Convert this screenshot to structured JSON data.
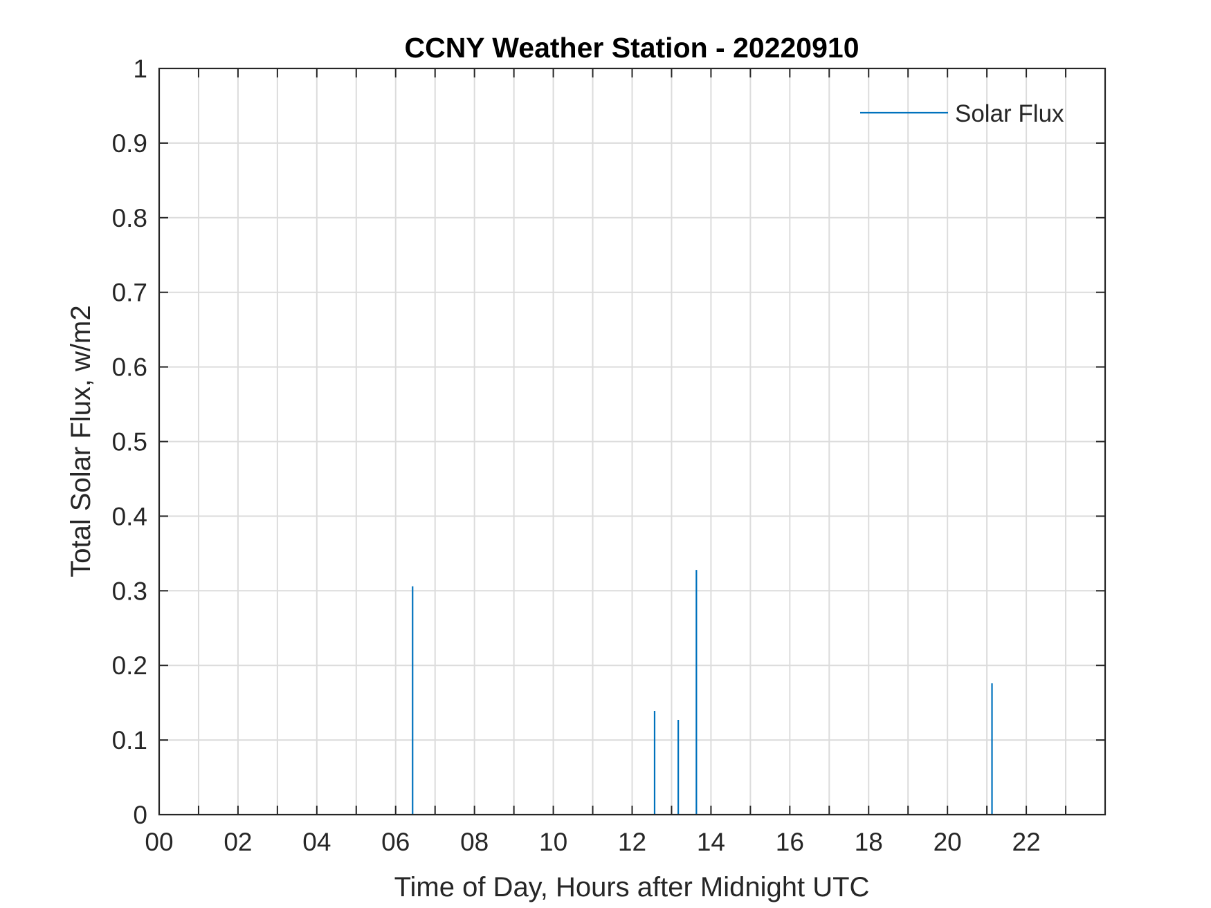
{
  "chart_data": {
    "type": "line",
    "title": "CCNY Weather Station - 20220910",
    "xlabel": "Time of Day, Hours after Midnight UTC",
    "ylabel": "Total Solar Flux, w/m2",
    "xlim": [
      0,
      24
    ],
    "ylim": [
      0,
      1
    ],
    "x_ticks": [
      0,
      2,
      4,
      6,
      8,
      10,
      12,
      14,
      16,
      18,
      20,
      22
    ],
    "x_tick_labels": [
      "00",
      "02",
      "04",
      "06",
      "08",
      "10",
      "12",
      "14",
      "16",
      "18",
      "20",
      "22"
    ],
    "x_grid_step": 1,
    "y_ticks": [
      0,
      0.1,
      0.2,
      0.3,
      0.4,
      0.5,
      0.6,
      0.7,
      0.8,
      0.9,
      1
    ],
    "y_tick_labels": [
      "0",
      "0.1",
      "0.2",
      "0.3",
      "0.4",
      "0.5",
      "0.6",
      "0.7",
      "0.8",
      "0.9",
      "1"
    ],
    "grid": true,
    "legend_position": "top-right",
    "series": [
      {
        "name": "Solar Flux",
        "color": "#0072BD",
        "points": [
          {
            "x": 6.43,
            "y": 0.306
          },
          {
            "x": 12.57,
            "y": 0.139
          },
          {
            "x": 13.17,
            "y": 0.127
          },
          {
            "x": 13.63,
            "y": 0.328
          },
          {
            "x": 21.13,
            "y": 0.176
          }
        ]
      }
    ]
  }
}
